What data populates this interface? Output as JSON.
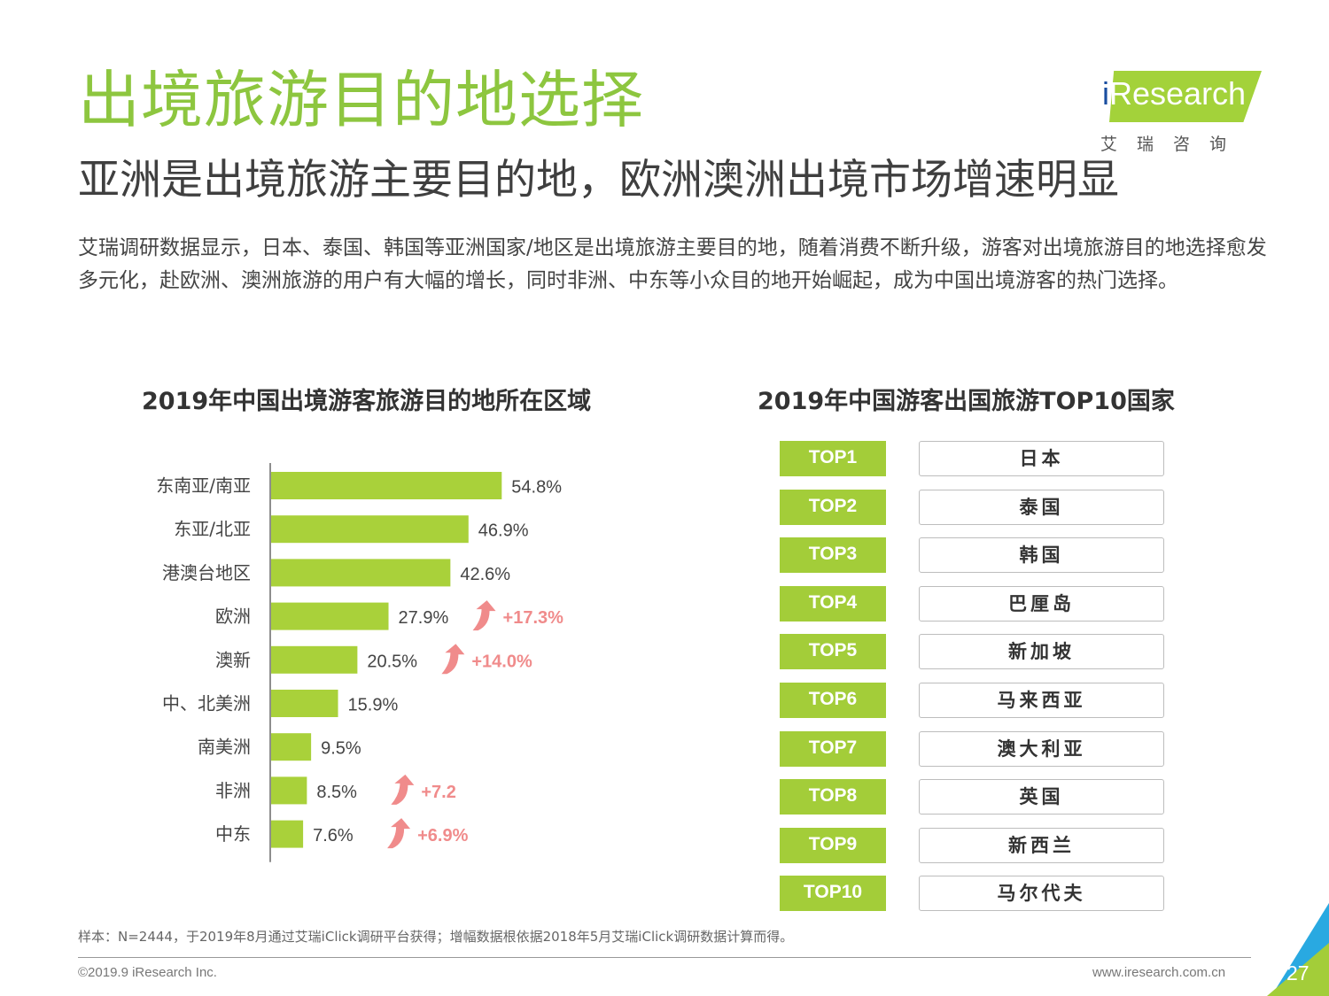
{
  "header": {
    "title": "出境旅游目的地选择",
    "subtitle": "亚洲是出境旅游主要目的地，欧洲澳洲出境市场增速明显",
    "intro": "艾瑞调研数据显示，日本、泰国、韩国等亚洲国家/地区是出境旅游主要目的地，随着消费不断升级，游客对出境旅游目的地选择愈发多元化，赴欧洲、澳洲旅游的用户有大幅的增长，同时非洲、中东等小众目的地开始崛起，成为中国出境游客的热门选择。"
  },
  "logo": {
    "brand_i": "i",
    "brand_rest": "Research",
    "cn": "艾瑞咨询"
  },
  "chart_data": [
    {
      "type": "bar",
      "orientation": "horizontal",
      "title": "2019年中国出境游客旅游目的地所在区域",
      "categories": [
        "东南亚/南亚",
        "东亚/北亚",
        "港澳台地区",
        "欧洲",
        "澳新",
        "中、北美洲",
        "南美洲",
        "非洲",
        "中东"
      ],
      "values": [
        54.8,
        46.9,
        42.6,
        27.9,
        20.5,
        15.9,
        9.5,
        8.5,
        7.6
      ],
      "value_labels": [
        "54.8%",
        "46.9%",
        "42.6%",
        "27.9%",
        "20.5%",
        "15.9%",
        "9.5%",
        "8.5%",
        "7.6%"
      ],
      "growth_labels": [
        "",
        "",
        "",
        "+17.3%",
        "+14.0%",
        "",
        "",
        "+7.2",
        "+6.9%"
      ],
      "bar_color": "#a9d13a",
      "growth_color": "#f08b8b",
      "xlim": [
        0,
        60
      ]
    },
    {
      "type": "table",
      "title": "2019年中国游客出国旅游TOP10国家",
      "ranks": [
        "TOP1",
        "TOP2",
        "TOP3",
        "TOP4",
        "TOP5",
        "TOP6",
        "TOP7",
        "TOP8",
        "TOP9",
        "TOP10"
      ],
      "countries": [
        "日本",
        "泰国",
        "韩国",
        "巴厘岛",
        "新加坡",
        "马来西亚",
        "澳大利亚",
        "英国",
        "新西兰",
        "马尔代夫"
      ],
      "rank_color": "#a3cd39"
    }
  ],
  "footer": {
    "note": "样本：N=2444，于2019年8月通过艾瑞iClick调研平台获得；增幅数据根依据2018年5月艾瑞iClick调研数据计算而得。",
    "copyright": "©2019.9 iResearch Inc.",
    "site": "www.iresearch.com.cn",
    "page": "27"
  }
}
